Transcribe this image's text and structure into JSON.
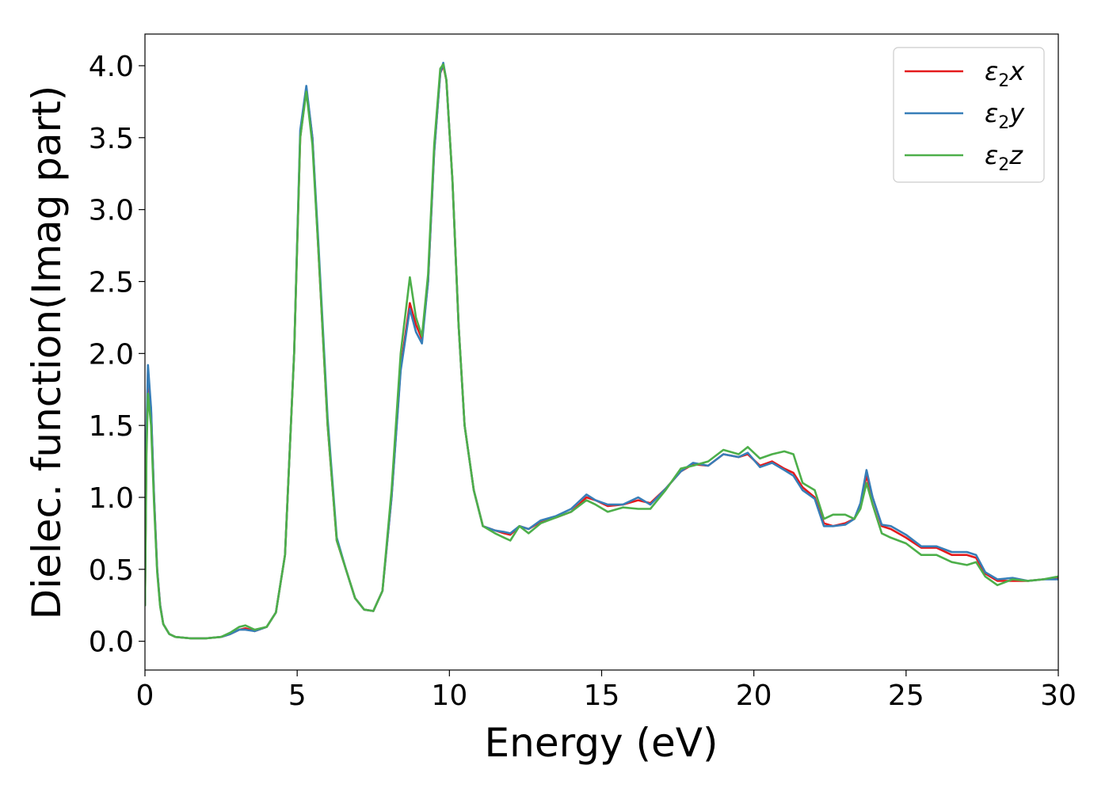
{
  "chart_data": {
    "type": "line",
    "xlabel": "Energy (eV)",
    "ylabel": "Dielec. function(Imag part)",
    "xlim": [
      0,
      30
    ],
    "ylim": [
      -0.2,
      4.22
    ],
    "grid": false,
    "legend_placement": "top-right",
    "xticks": [
      "0",
      "5",
      "10",
      "15",
      "20",
      "25",
      "30"
    ],
    "yticks": [
      "0.0",
      "0.5",
      "1.0",
      "1.5",
      "2.0",
      "2.5",
      "3.0",
      "3.5",
      "4.0"
    ],
    "series": [
      {
        "name": "ε2x",
        "legend_base": "ε",
        "legend_sub": "2",
        "legend_var": "x",
        "color": "#e41a1c",
        "x": [
          0,
          0.05,
          0.1,
          0.2,
          0.3,
          0.4,
          0.5,
          0.6,
          0.8,
          1,
          1.5,
          2,
          2.5,
          2.8,
          3.1,
          3.3,
          3.6,
          4,
          4.3,
          4.6,
          4.9,
          5.1,
          5.3,
          5.5,
          5.7,
          6,
          6.3,
          6.6,
          6.9,
          7.2,
          7.5,
          7.8,
          8.1,
          8.4,
          8.7,
          8.9,
          9.1,
          9.3,
          9.5,
          9.7,
          9.8,
          9.9,
          10.1,
          10.3,
          10.5,
          10.8,
          11.1,
          11.5,
          11.8,
          12,
          12.3,
          12.6,
          13,
          13.5,
          14,
          14.5,
          14.8,
          15.2,
          15.7,
          16.2,
          16.6,
          17.1,
          17.6,
          18,
          18.5,
          19,
          19.5,
          19.8,
          20.2,
          20.6,
          21,
          21.3,
          21.6,
          22,
          22.3,
          22.6,
          23,
          23.3,
          23.5,
          23.7,
          23.9,
          24.2,
          24.5,
          25,
          25.5,
          26,
          26.5,
          27,
          27.3,
          27.6,
          28,
          28.5,
          29,
          29.5,
          30
        ],
        "y": [
          0.25,
          1.4,
          1.88,
          1.6,
          1.0,
          0.5,
          0.25,
          0.12,
          0.05,
          0.03,
          0.02,
          0.02,
          0.03,
          0.05,
          0.08,
          0.09,
          0.07,
          0.1,
          0.2,
          0.6,
          2.0,
          3.5,
          3.84,
          3.5,
          2.7,
          1.5,
          0.7,
          0.5,
          0.3,
          0.22,
          0.21,
          0.35,
          1.0,
          1.9,
          2.35,
          2.2,
          2.1,
          2.5,
          3.4,
          3.95,
          4.0,
          3.9,
          3.2,
          2.2,
          1.5,
          1.05,
          0.8,
          0.77,
          0.75,
          0.74,
          0.8,
          0.78,
          0.83,
          0.86,
          0.9,
          1.0,
          0.98,
          0.94,
          0.95,
          0.98,
          0.96,
          1.06,
          1.18,
          1.23,
          1.22,
          1.3,
          1.28,
          1.3,
          1.22,
          1.25,
          1.2,
          1.17,
          1.07,
          1.0,
          0.82,
          0.8,
          0.82,
          0.85,
          0.95,
          1.15,
          1.0,
          0.8,
          0.78,
          0.72,
          0.65,
          0.65,
          0.6,
          0.6,
          0.58,
          0.47,
          0.42,
          0.42,
          0.42,
          0.43,
          0.44
        ]
      },
      {
        "name": "ε2y",
        "legend_base": "ε",
        "legend_sub": "2",
        "legend_var": "y",
        "color": "#377eb8",
        "x": [
          0,
          0.05,
          0.1,
          0.2,
          0.3,
          0.4,
          0.5,
          0.6,
          0.8,
          1,
          1.5,
          2,
          2.5,
          2.8,
          3.1,
          3.3,
          3.6,
          4,
          4.3,
          4.6,
          4.9,
          5.1,
          5.3,
          5.5,
          5.7,
          6,
          6.3,
          6.6,
          6.9,
          7.2,
          7.5,
          7.8,
          8.1,
          8.4,
          8.7,
          8.9,
          9.1,
          9.3,
          9.5,
          9.7,
          9.8,
          9.9,
          10.1,
          10.3,
          10.5,
          10.8,
          11.1,
          11.5,
          11.8,
          12,
          12.3,
          12.6,
          13,
          13.5,
          14,
          14.5,
          14.8,
          15.2,
          15.7,
          16.2,
          16.6,
          17.1,
          17.6,
          18,
          18.5,
          19,
          19.5,
          19.8,
          20.2,
          20.6,
          21,
          21.3,
          21.6,
          22,
          22.3,
          22.6,
          23,
          23.3,
          23.5,
          23.7,
          23.9,
          24.2,
          24.5,
          25,
          25.5,
          26,
          26.5,
          27,
          27.3,
          27.6,
          28,
          28.5,
          29,
          29.5,
          30
        ],
        "y": [
          0.25,
          1.45,
          1.92,
          1.62,
          1.0,
          0.5,
          0.25,
          0.12,
          0.05,
          0.03,
          0.02,
          0.02,
          0.03,
          0.05,
          0.08,
          0.08,
          0.07,
          0.1,
          0.2,
          0.6,
          2.0,
          3.55,
          3.86,
          3.5,
          2.75,
          1.55,
          0.72,
          0.5,
          0.3,
          0.22,
          0.21,
          0.35,
          1.0,
          1.88,
          2.31,
          2.15,
          2.07,
          2.5,
          3.4,
          3.95,
          4.02,
          3.9,
          3.2,
          2.2,
          1.5,
          1.05,
          0.8,
          0.77,
          0.76,
          0.75,
          0.8,
          0.78,
          0.84,
          0.87,
          0.92,
          1.02,
          0.98,
          0.95,
          0.95,
          1.0,
          0.95,
          1.06,
          1.18,
          1.24,
          1.22,
          1.3,
          1.28,
          1.31,
          1.21,
          1.24,
          1.19,
          1.15,
          1.05,
          0.99,
          0.8,
          0.8,
          0.81,
          0.85,
          0.96,
          1.19,
          1.0,
          0.81,
          0.8,
          0.74,
          0.66,
          0.66,
          0.62,
          0.62,
          0.6,
          0.48,
          0.43,
          0.44,
          0.42,
          0.43,
          0.43
        ]
      },
      {
        "name": "ε2z",
        "legend_base": "ε",
        "legend_sub": "2",
        "legend_var": "z",
        "color": "#4daf4a",
        "x": [
          0,
          0.05,
          0.1,
          0.2,
          0.3,
          0.4,
          0.5,
          0.6,
          0.8,
          1,
          1.5,
          2,
          2.5,
          2.8,
          3.1,
          3.3,
          3.6,
          4,
          4.3,
          4.6,
          4.9,
          5.1,
          5.3,
          5.5,
          5.7,
          6,
          6.3,
          6.6,
          6.9,
          7.2,
          7.5,
          7.8,
          8.1,
          8.4,
          8.7,
          8.9,
          9.1,
          9.3,
          9.5,
          9.7,
          9.8,
          9.9,
          10.1,
          10.3,
          10.5,
          10.8,
          11.1,
          11.5,
          11.8,
          12,
          12.3,
          12.6,
          13,
          13.5,
          14,
          14.5,
          14.8,
          15.2,
          15.7,
          16.2,
          16.6,
          17.1,
          17.6,
          18,
          18.5,
          19,
          19.5,
          19.8,
          20.2,
          20.6,
          21,
          21.3,
          21.6,
          22,
          22.3,
          22.6,
          23,
          23.3,
          23.5,
          23.7,
          23.9,
          24.2,
          24.5,
          25,
          25.5,
          26,
          26.5,
          27,
          27.3,
          27.6,
          28,
          28.5,
          29,
          29.5,
          30
        ],
        "y": [
          0.25,
          1.3,
          1.72,
          1.5,
          0.95,
          0.48,
          0.24,
          0.12,
          0.05,
          0.03,
          0.02,
          0.02,
          0.03,
          0.06,
          0.1,
          0.11,
          0.08,
          0.1,
          0.2,
          0.6,
          2.0,
          3.5,
          3.82,
          3.45,
          2.7,
          1.5,
          0.7,
          0.5,
          0.3,
          0.22,
          0.21,
          0.35,
          1.05,
          2.0,
          2.53,
          2.25,
          2.12,
          2.55,
          3.45,
          3.98,
          4.01,
          3.9,
          3.2,
          2.2,
          1.5,
          1.05,
          0.8,
          0.75,
          0.72,
          0.7,
          0.8,
          0.75,
          0.82,
          0.86,
          0.9,
          0.98,
          0.95,
          0.9,
          0.93,
          0.92,
          0.92,
          1.05,
          1.2,
          1.22,
          1.25,
          1.33,
          1.3,
          1.35,
          1.27,
          1.3,
          1.32,
          1.3,
          1.1,
          1.05,
          0.85,
          0.88,
          0.88,
          0.85,
          0.92,
          1.1,
          0.95,
          0.75,
          0.72,
          0.68,
          0.6,
          0.6,
          0.55,
          0.53,
          0.55,
          0.45,
          0.39,
          0.43,
          0.42,
          0.43,
          0.45
        ]
      }
    ]
  }
}
